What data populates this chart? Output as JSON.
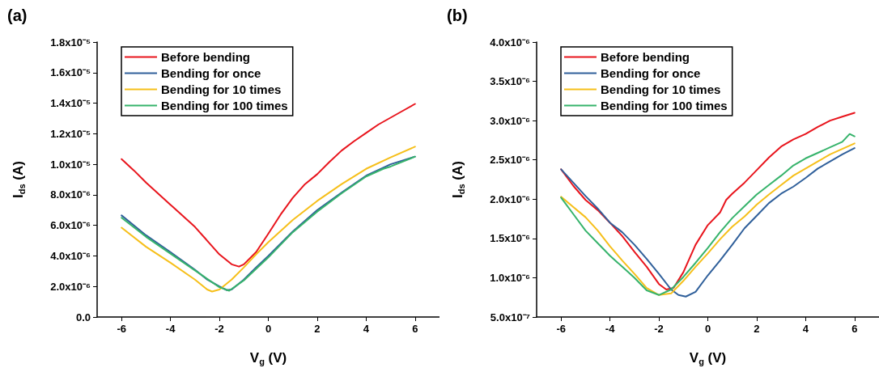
{
  "chart_data": [
    {
      "type": "line",
      "title": "(a)",
      "xlabel": "V$_{g}$ (V)",
      "ylabel": "I$_{ds}$ (A)",
      "legend": "top left",
      "grid": false,
      "marker": "none",
      "line_style": "solid",
      "xlim": [
        -7,
        7
      ],
      "xticks": [
        -6,
        -4,
        -2,
        0,
        2,
        4,
        6
      ],
      "ylim": [
        0,
        1.8e-05
      ],
      "yticks": [
        {
          "value": 0,
          "label": "0.0"
        },
        {
          "value": 2e-06,
          "label": "2.0x10⁻⁶"
        },
        {
          "value": 4e-06,
          "label": "4.0x10⁻⁶"
        },
        {
          "value": 6e-06,
          "label": "6.0x10⁻⁶"
        },
        {
          "value": 8e-06,
          "label": "8.0x10⁻⁶"
        },
        {
          "value": 1e-05,
          "label": "1.0x10⁻⁵"
        },
        {
          "value": 1.2e-05,
          "label": "1.2x10⁻⁵"
        },
        {
          "value": 1.4e-05,
          "label": "1.4x10⁻⁵"
        },
        {
          "value": 1.6e-05,
          "label": "1.6x10⁻⁵"
        },
        {
          "value": 1.8e-05,
          "label": "1.8x10⁻⁵"
        }
      ],
      "series": [
        {
          "name": "Before bending",
          "color": "#e8141c",
          "x": [
            -6,
            -5.5,
            -5,
            -4,
            -3,
            -2.5,
            -2,
            -1.5,
            -1.2,
            -1,
            -0.5,
            0,
            0.5,
            1,
            1.5,
            2,
            2.5,
            3,
            3.5,
            4,
            4.5,
            5,
            5.5,
            6
          ],
          "values": [
            1.034e-05,
            9.6e-06,
            8.8e-06,
            7.35e-06,
            5.9e-06,
            5e-06,
            4.1e-06,
            3.45e-06,
            3.3e-06,
            3.45e-06,
            4.25e-06,
            5.45e-06,
            6.7e-06,
            7.8e-06,
            8.7e-06,
            9.35e-06,
            1.015e-05,
            1.09e-05,
            1.15e-05,
            1.205e-05,
            1.26e-05,
            1.305e-05,
            1.35e-05,
            1.395e-05
          ]
        },
        {
          "name": "Bending for once",
          "color": "#2f5f9a",
          "x": [
            -6,
            -5,
            -4,
            -3,
            -2.5,
            -2,
            -1.7,
            -1.5,
            -1,
            -0.5,
            0,
            1,
            2,
            3,
            4,
            5,
            6
          ],
          "values": [
            6.65e-06,
            5.35e-06,
            4.25e-06,
            3.1e-06,
            2.45e-06,
            2e-06,
            1.76e-06,
            1.8e-06,
            2.45e-06,
            3.25e-06,
            4e-06,
            5.6e-06,
            7e-06,
            8.15e-06,
            9.25e-06,
            1e-05,
            1.05e-05
          ]
        },
        {
          "name": "Bending for 10 times",
          "color": "#f6bf1a",
          "x": [
            -6,
            -5,
            -4,
            -3,
            -2.5,
            -2.3,
            -2,
            -1.5,
            -1,
            -0.5,
            0,
            1,
            2,
            3,
            4,
            5,
            6
          ],
          "values": [
            5.85e-06,
            4.6e-06,
            3.55e-06,
            2.45e-06,
            1.8e-06,
            1.67e-06,
            1.8e-06,
            2.45e-06,
            3.25e-06,
            4.1e-06,
            4.9e-06,
            6.35e-06,
            7.6e-06,
            8.7e-06,
            9.7e-06,
            1.045e-05,
            1.115e-05
          ]
        },
        {
          "name": "Bending for 100 times",
          "color": "#36b36b",
          "x": [
            -6,
            -5,
            -4,
            -3,
            -2,
            -1.6,
            -1,
            0,
            1,
            2,
            3,
            4,
            4.7,
            5,
            6
          ],
          "values": [
            6.5e-06,
            5.25e-06,
            4.15e-06,
            3.05e-06,
            1.95e-06,
            1.72e-06,
            2.4e-06,
            3.9e-06,
            5.55e-06,
            6.9e-06,
            8.1e-06,
            9.2e-06,
            9.7e-06,
            9.85e-06,
            1.05e-05
          ]
        }
      ]
    },
    {
      "type": "line",
      "title": "(b)",
      "xlabel": "V$_{g}$ (V)",
      "ylabel": "I$_{ds}$ (A)",
      "legend": "top left",
      "grid": false,
      "marker": "none",
      "line_style": "solid",
      "xlim": [
        -7,
        7
      ],
      "xticks": [
        -6,
        -4,
        -2,
        0,
        2,
        4,
        6
      ],
      "ylim": [
        5e-07,
        4e-06
      ],
      "yticks": [
        {
          "value": 5e-07,
          "label": "5.0x10⁻⁷"
        },
        {
          "value": 1e-06,
          "label": "1.0x10⁻⁶"
        },
        {
          "value": 1.5e-06,
          "label": "1.5x10⁻⁶"
        },
        {
          "value": 2e-06,
          "label": "2.0x10⁻⁶"
        },
        {
          "value": 2.5e-06,
          "label": "2.5x10⁻⁶"
        },
        {
          "value": 3e-06,
          "label": "3.0x10⁻⁶"
        },
        {
          "value": 3.5e-06,
          "label": "3.5x10⁻⁶"
        },
        {
          "value": 4e-06,
          "label": "4.0x10⁻⁶"
        }
      ],
      "series": [
        {
          "name": "Before bending",
          "color": "#e8141c",
          "x": [
            -6,
            -5.5,
            -5,
            -4.5,
            -4,
            -3.5,
            -3,
            -2.5,
            -2,
            -1.7,
            -1.4,
            -1,
            -0.5,
            0,
            0.5,
            0.75,
            1,
            1.5,
            2,
            2.5,
            3,
            3.5,
            4,
            4.5,
            5,
            5.5,
            6
          ],
          "values": [
            2.38e-06,
            2.17e-06,
            1.99e-06,
            1.86e-06,
            1.7e-06,
            1.53e-06,
            1.33e-06,
            1.14e-06,
            9.2e-07,
            8.5e-07,
            8.7e-07,
            1.07e-06,
            1.42e-06,
            1.67e-06,
            1.83e-06,
            1.99e-06,
            2.07e-06,
            2.21e-06,
            2.37e-06,
            2.53e-06,
            2.67e-06,
            2.76e-06,
            2.83e-06,
            2.92e-06,
            3e-06,
            3.05e-06,
            3.1e-06
          ]
        },
        {
          "name": "Bending for once",
          "color": "#2f5f9a",
          "x": [
            -6,
            -5.5,
            -5,
            -4.5,
            -4,
            -3.5,
            -3,
            -2.5,
            -2,
            -1.5,
            -1.2,
            -0.9,
            -0.5,
            0,
            0.5,
            1,
            1.5,
            2,
            2.5,
            3,
            3.5,
            4,
            4.5,
            5,
            5.5,
            6
          ],
          "values": [
            2.38e-06,
            2.21e-06,
            2.04e-06,
            1.88e-06,
            1.7e-06,
            1.58e-06,
            1.42e-06,
            1.24e-06,
            1.05e-06,
            8.5e-07,
            7.8e-07,
            7.6e-07,
            8.2e-07,
            1.03e-06,
            1.22e-06,
            1.42e-06,
            1.63e-06,
            1.79e-06,
            1.95e-06,
            2.07e-06,
            2.16e-06,
            2.27e-06,
            2.39e-06,
            2.48e-06,
            2.57e-06,
            2.65e-06
          ]
        },
        {
          "name": "Bending for 10 times",
          "color": "#f6bf1a",
          "x": [
            -6,
            -5,
            -4.5,
            -4,
            -3.5,
            -3,
            -2.5,
            -2,
            -1.5,
            -1,
            -0.5,
            0,
            0.5,
            1,
            1.5,
            2,
            2.5,
            3,
            3.5,
            4,
            4.5,
            5,
            5.5,
            6
          ],
          "values": [
            2.03e-06,
            1.77e-06,
            1.6e-06,
            1.4e-06,
            1.22e-06,
            1.05e-06,
            8.7e-07,
            7.8e-07,
            8e-07,
            9.6e-07,
            1.14e-06,
            1.31e-06,
            1.49e-06,
            1.65e-06,
            1.78e-06,
            1.93e-06,
            2.06e-06,
            2.18e-06,
            2.3e-06,
            2.39e-06,
            2.48e-06,
            2.57e-06,
            2.64e-06,
            2.71e-06
          ]
        },
        {
          "name": "Bending for 100 times",
          "color": "#36b36b",
          "x": [
            -6,
            -5.5,
            -5,
            -4.5,
            -4,
            -3.5,
            -3,
            -2.5,
            -2,
            -1.5,
            -1,
            -0.5,
            0,
            0.5,
            1,
            1.5,
            2,
            2.5,
            3,
            3.5,
            4,
            4.5,
            5,
            5.5,
            5.8,
            6
          ],
          "values": [
            2.02e-06,
            1.81e-06,
            1.6e-06,
            1.44e-06,
            1.28e-06,
            1.14e-06,
            1e-06,
            8.4e-07,
            7.8e-07,
            8.5e-07,
            1.01e-06,
            1.19e-06,
            1.38e-06,
            1.58e-06,
            1.76e-06,
            1.91e-06,
            2.06e-06,
            2.18e-06,
            2.3e-06,
            2.43e-06,
            2.52e-06,
            2.59e-06,
            2.66e-06,
            2.73e-06,
            2.83e-06,
            2.8e-06
          ]
        }
      ]
    }
  ]
}
